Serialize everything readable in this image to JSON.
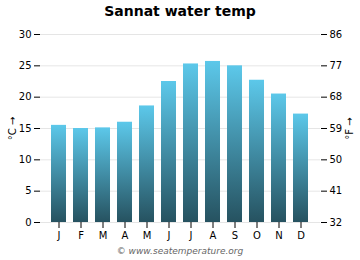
{
  "chart_data": {
    "type": "bar",
    "title": "Sannat water temp",
    "categories": [
      "J",
      "F",
      "M",
      "A",
      "M",
      "J",
      "J",
      "A",
      "S",
      "O",
      "N",
      "D"
    ],
    "values": [
      15.5,
      15.0,
      15.1,
      16.0,
      18.6,
      22.5,
      25.3,
      25.7,
      25.0,
      22.7,
      20.5,
      17.3
    ],
    "color": "#5cc8ea",
    "ylim": [
      0,
      30
    ],
    "yticks": [
      0,
      5,
      10,
      15,
      20,
      25,
      30
    ],
    "ylabel": "°C",
    "y2lim": [
      32,
      86
    ],
    "y2ticks": [
      32,
      41,
      50,
      59,
      68,
      77,
      86
    ],
    "y2label": "°F",
    "grid": true,
    "caption": "© www.seatemperature.org"
  }
}
